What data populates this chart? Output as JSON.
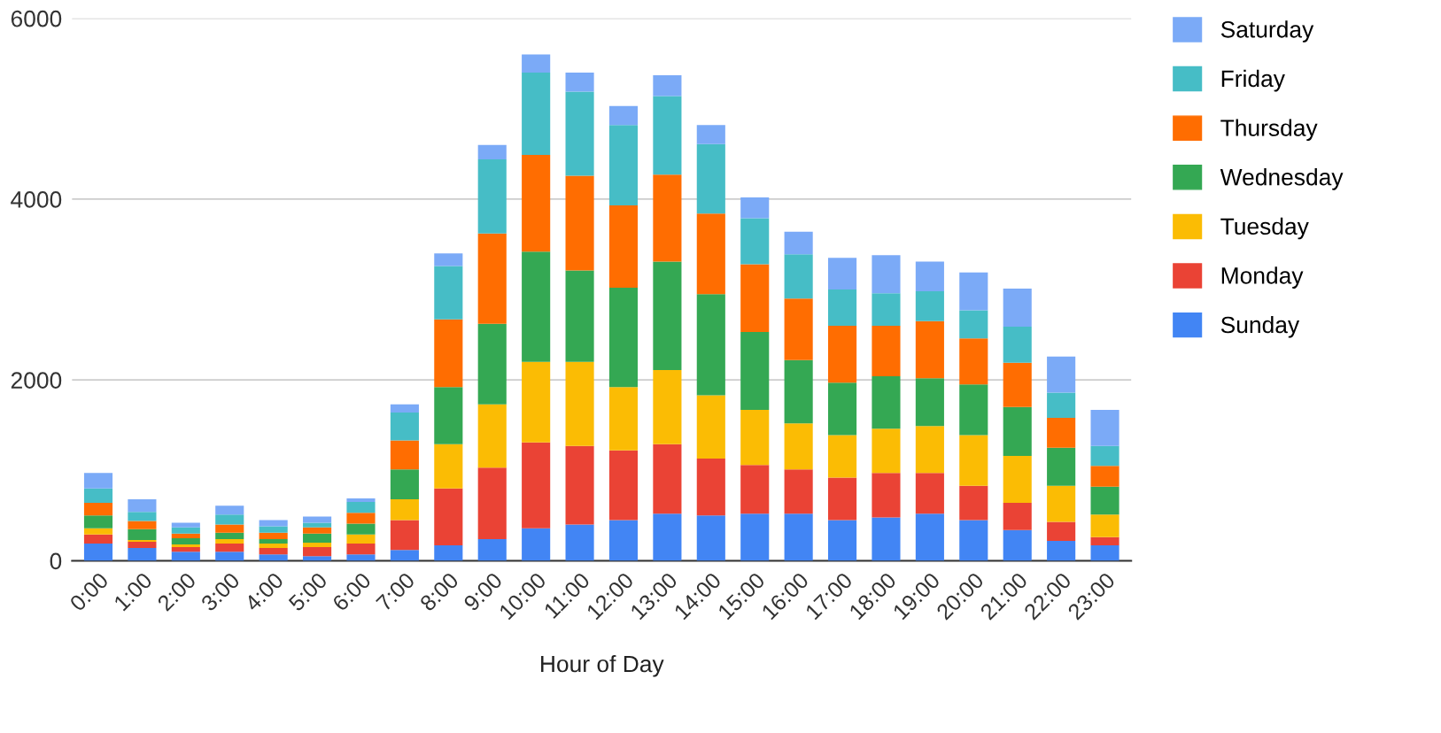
{
  "chart_data": {
    "type": "bar",
    "stacked": true,
    "xlabel": "Hour of Day",
    "categories": [
      "0:00",
      "1:00",
      "2:00",
      "3:00",
      "4:00",
      "5:00",
      "6:00",
      "7:00",
      "8:00",
      "9:00",
      "10:00",
      "11:00",
      "12:00",
      "13:00",
      "14:00",
      "15:00",
      "16:00",
      "17:00",
      "18:00",
      "19:00",
      "20:00",
      "21:00",
      "22:00",
      "23:00"
    ],
    "series": [
      {
        "name": "Sunday",
        "color": "#4285f4",
        "values": [
          190,
          140,
          100,
          100,
          70,
          50,
          70,
          120,
          170,
          240,
          360,
          400,
          450,
          520,
          500,
          520,
          520,
          450,
          480,
          520,
          450,
          340,
          220,
          170
        ]
      },
      {
        "name": "Monday",
        "color": "#ea4335",
        "values": [
          100,
          70,
          50,
          90,
          70,
          100,
          120,
          330,
          630,
          790,
          950,
          870,
          770,
          770,
          630,
          540,
          490,
          470,
          490,
          450,
          380,
          300,
          210,
          90
        ]
      },
      {
        "name": "Tuesday",
        "color": "#fbbc04",
        "values": [
          70,
          20,
          30,
          50,
          50,
          50,
          100,
          230,
          490,
          700,
          890,
          930,
          700,
          820,
          700,
          610,
          510,
          470,
          490,
          520,
          560,
          520,
          400,
          250
        ]
      },
      {
        "name": "Wednesday",
        "color": "#34a853",
        "values": [
          140,
          120,
          70,
          70,
          50,
          100,
          120,
          330,
          630,
          890,
          1220,
          1010,
          1100,
          1200,
          1120,
          860,
          700,
          580,
          580,
          530,
          560,
          540,
          420,
          310
        ]
      },
      {
        "name": "Thursday",
        "color": "#ff6d01",
        "values": [
          140,
          90,
          50,
          90,
          70,
          70,
          120,
          320,
          750,
          1000,
          1070,
          1050,
          910,
          960,
          890,
          750,
          680,
          630,
          560,
          630,
          510,
          490,
          330,
          230
        ]
      },
      {
        "name": "Friday",
        "color": "#46bdc6",
        "values": [
          160,
          100,
          70,
          110,
          70,
          50,
          120,
          310,
          590,
          820,
          910,
          930,
          890,
          870,
          770,
          510,
          490,
          400,
          360,
          330,
          310,
          400,
          280,
          220
        ]
      },
      {
        "name": "Saturday",
        "color": "#7baaf7",
        "values": [
          170,
          140,
          50,
          100,
          70,
          70,
          40,
          90,
          140,
          160,
          200,
          210,
          210,
          230,
          210,
          230,
          250,
          350,
          420,
          330,
          420,
          420,
          400,
          400
        ]
      }
    ],
    "ylim": [
      0,
      6000
    ],
    "yticks": [
      0,
      2000,
      4000,
      6000
    ],
    "grid": "y",
    "legend": "top right"
  }
}
